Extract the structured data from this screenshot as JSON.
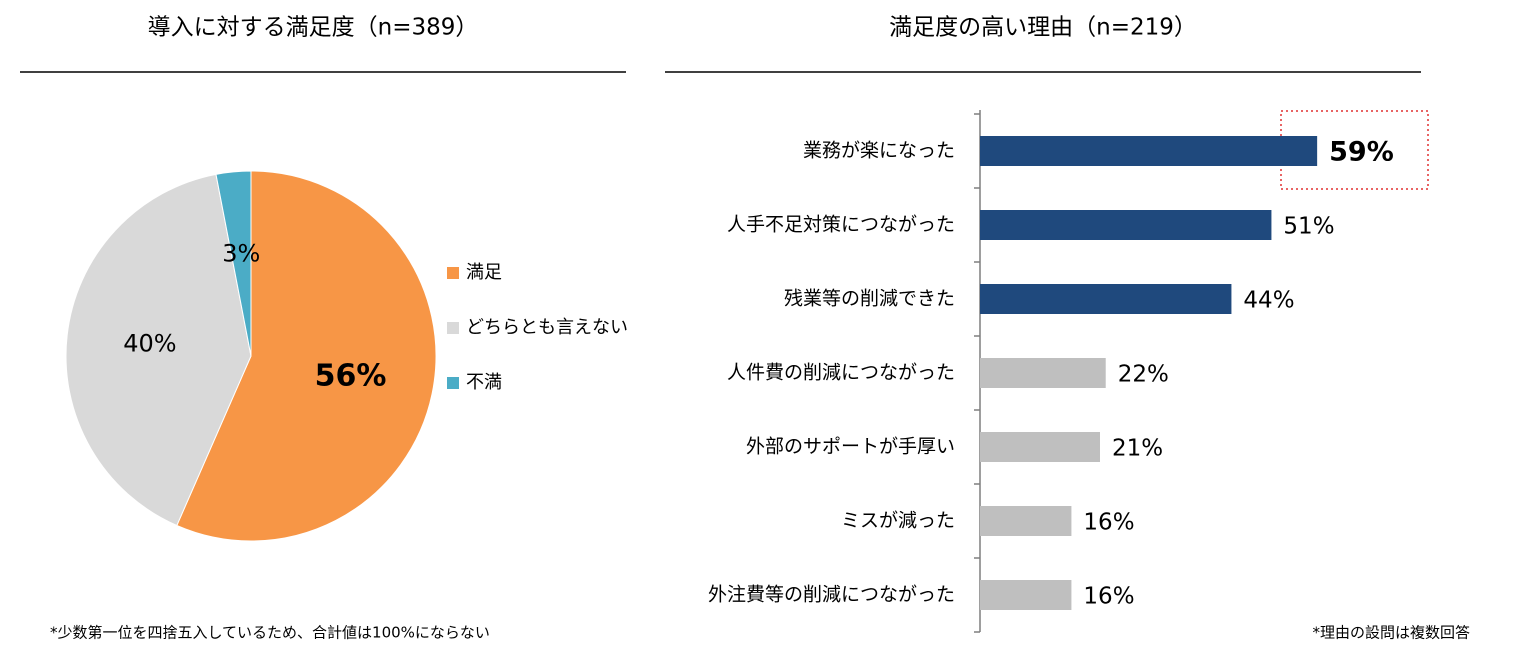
{
  "chart_data": [
    {
      "type": "pie",
      "title": "導入に対する満足度（n=389）",
      "series": [
        {
          "name": "満足",
          "color": "#f79646",
          "values": [
            56
          ],
          "value_labels": [
            "56%"
          ]
        },
        {
          "name": "どちらとも言えない",
          "color": "#d9d9d9",
          "values": [
            40
          ],
          "value_labels": [
            "40%"
          ]
        },
        {
          "name": "不満",
          "color": "#4bacc6",
          "values": [
            3
          ],
          "value_labels": [
            "3%"
          ]
        }
      ],
      "legend": "right",
      "note": "*少数第一位を四捨五入しているため、合計値は100%にならない"
    },
    {
      "type": "barh",
      "title": "満足度の高い理由（n=219）",
      "categories": [
        "業務が楽になった",
        "人手不足対策につながった",
        "残業等の削減できた",
        "人件費の削減につながった",
        "外部のサポートが手厚い",
        "ミスが減った",
        "外注費等の削減につながった"
      ],
      "values": [
        59,
        51,
        44,
        22,
        21,
        16,
        16
      ],
      "value_labels": [
        "59%",
        "51%",
        "44%",
        "22%",
        "21%",
        "16%",
        "16%"
      ],
      "colors": [
        "#1f497d",
        "#1f497d",
        "#1f497d",
        "#bfbfbf",
        "#bfbfbf",
        "#bfbfbf",
        "#bfbfbf"
      ],
      "xlim": [
        0,
        70
      ],
      "note": "*理由の設問は複数回答"
    }
  ]
}
